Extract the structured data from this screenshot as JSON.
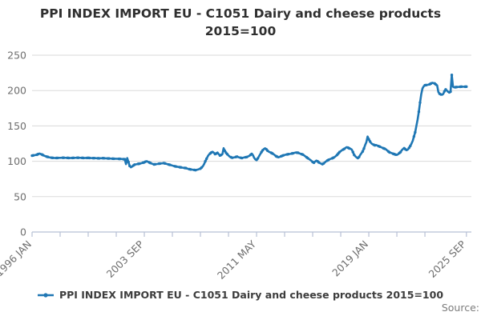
{
  "title": {
    "line1": "PPI INDEX IMPORT EU - C1051 Dairy and cheese products",
    "line2": "2015=100"
  },
  "legend": {
    "label": "PPI INDEX IMPORT EU - C1051 Dairy and cheese products 2015=100"
  },
  "source": {
    "label": "Source:"
  },
  "colors": {
    "line": "#1f77b4",
    "grid": "#dadada",
    "axis": "#b7c0d5",
    "tick_label": "#6e6e6e"
  },
  "chart_data": {
    "type": "line",
    "title": "PPI INDEX IMPORT EU - C1051 Dairy and cheese products 2015=100",
    "x_unit": "months since 1996 JAN",
    "x_range": [
      "1996 JAN",
      "2025 SEP"
    ],
    "x_total_months": 356,
    "xtick_labels": [
      {
        "month": 0,
        "label": "1996 JAN"
      },
      {
        "month": 92,
        "label": "2003 SEP"
      },
      {
        "month": 184,
        "label": "2011 MAY"
      },
      {
        "month": 276,
        "label": "2019 JAN"
      },
      {
        "month": 356,
        "label": "2025 SEP"
      }
    ],
    "minor_tick_months": [
      0,
      23,
      46,
      69,
      92,
      115,
      138,
      161,
      184,
      207,
      230,
      253,
      276,
      299,
      322,
      356
    ],
    "yticks": [
      0,
      50,
      100,
      150,
      200,
      250
    ],
    "ylim": [
      0,
      250
    ],
    "grid": "horizontal",
    "legend_position": "bottom",
    "series": [
      {
        "name": "PPI INDEX IMPORT EU - C1051 Dairy and cheese products 2015=100",
        "points": [
          [
            0,
            108
          ],
          [
            2,
            108.6
          ],
          [
            4,
            109.3
          ],
          [
            6,
            111
          ],
          [
            8,
            109.6
          ],
          [
            10,
            107.8
          ],
          [
            12,
            106.6
          ],
          [
            14,
            105.6
          ],
          [
            16,
            105
          ],
          [
            19,
            104.6
          ],
          [
            22,
            104.8
          ],
          [
            25,
            105
          ],
          [
            28,
            104.9
          ],
          [
            31,
            104.6
          ],
          [
            34,
            104.8
          ],
          [
            37,
            105
          ],
          [
            40,
            104.9
          ],
          [
            43,
            104.6
          ],
          [
            46,
            104.8
          ],
          [
            49,
            104.5
          ],
          [
            52,
            104.4
          ],
          [
            55,
            104.2
          ],
          [
            58,
            104.4
          ],
          [
            61,
            104.1
          ],
          [
            64,
            103.9
          ],
          [
            67,
            103.6
          ],
          [
            70,
            103.5
          ],
          [
            73,
            103.3
          ],
          [
            75,
            103
          ],
          [
            76,
            102.8
          ],
          [
            77,
            96
          ],
          [
            78,
            104.5
          ],
          [
            79,
            99
          ],
          [
            80,
            93.5
          ],
          [
            81,
            91.5
          ],
          [
            82,
            92.5
          ],
          [
            83,
            94
          ],
          [
            84,
            95.2
          ],
          [
            86,
            96
          ],
          [
            88,
            96.6
          ],
          [
            90,
            97.5
          ],
          [
            92,
            98.5
          ],
          [
            93,
            99.5
          ],
          [
            94,
            100.2
          ],
          [
            95,
            99.3
          ],
          [
            96,
            98.4
          ],
          [
            98,
            96.8
          ],
          [
            100,
            95.6
          ],
          [
            102,
            96
          ],
          [
            104,
            96.6
          ],
          [
            106,
            97
          ],
          [
            108,
            97.4
          ],
          [
            110,
            96.4
          ],
          [
            112,
            95.4
          ],
          [
            114,
            94.5
          ],
          [
            116,
            93.4
          ],
          [
            118,
            92.6
          ],
          [
            120,
            92
          ],
          [
            122,
            91.4
          ],
          [
            124,
            90.8
          ],
          [
            126,
            90.4
          ],
          [
            128,
            89.2
          ],
          [
            130,
            88.5
          ],
          [
            132,
            88
          ],
          [
            134,
            87.5
          ],
          [
            136,
            88.4
          ],
          [
            138,
            89.6
          ],
          [
            140,
            93
          ],
          [
            141,
            96
          ],
          [
            142,
            100
          ],
          [
            143,
            103.5
          ],
          [
            144,
            107
          ],
          [
            145,
            109.5
          ],
          [
            146,
            111
          ],
          [
            147,
            112.5
          ],
          [
            148,
            113.5
          ],
          [
            149,
            112
          ],
          [
            150,
            110.2
          ],
          [
            151,
            111
          ],
          [
            152,
            112.4
          ],
          [
            153,
            110
          ],
          [
            154,
            108.2
          ],
          [
            155,
            109
          ],
          [
            156,
            110
          ],
          [
            157,
            118.5
          ],
          [
            158,
            114.8
          ],
          [
            159,
            112
          ],
          [
            160,
            110
          ],
          [
            161,
            108.2
          ],
          [
            162,
            106.6
          ],
          [
            164,
            105
          ],
          [
            166,
            105.6
          ],
          [
            168,
            106.5
          ],
          [
            170,
            105.4
          ],
          [
            172,
            104.6
          ],
          [
            174,
            105.5
          ],
          [
            176,
            106
          ],
          [
            178,
            107.6
          ],
          [
            179,
            109
          ],
          [
            180,
            110.4
          ],
          [
            181,
            108.8
          ],
          [
            182,
            105
          ],
          [
            183,
            102.6
          ],
          [
            184,
            102
          ],
          [
            185,
            104
          ],
          [
            186,
            107
          ],
          [
            187,
            110
          ],
          [
            188,
            113
          ],
          [
            189,
            115.5
          ],
          [
            190,
            117.4
          ],
          [
            191,
            118.4
          ],
          [
            192,
            117
          ],
          [
            193,
            115
          ],
          [
            194,
            113.6
          ],
          [
            196,
            112
          ],
          [
            198,
            110
          ],
          [
            200,
            107.2
          ],
          [
            202,
            105.6
          ],
          [
            204,
            107
          ],
          [
            206,
            108.4
          ],
          [
            208,
            109.4
          ],
          [
            210,
            110
          ],
          [
            212,
            110.6
          ],
          [
            214,
            111.4
          ],
          [
            216,
            112.4
          ],
          [
            218,
            112
          ],
          [
            220,
            110.6
          ],
          [
            222,
            109.4
          ],
          [
            224,
            107
          ],
          [
            226,
            104.4
          ],
          [
            228,
            102
          ],
          [
            230,
            99
          ],
          [
            231,
            98
          ],
          [
            232,
            99.6
          ],
          [
            233,
            101
          ],
          [
            234,
            100
          ],
          [
            235,
            98.4
          ],
          [
            236,
            97.4
          ],
          [
            237,
            96.6
          ],
          [
            238,
            96
          ],
          [
            239,
            97
          ],
          [
            240,
            98.4
          ],
          [
            241,
            100
          ],
          [
            242,
            101
          ],
          [
            243,
            102
          ],
          [
            244,
            103
          ],
          [
            246,
            104.2
          ],
          [
            248,
            106
          ],
          [
            250,
            109
          ],
          [
            252,
            113
          ],
          [
            254,
            115.6
          ],
          [
            256,
            117.6
          ],
          [
            257,
            119
          ],
          [
            258,
            120
          ],
          [
            259,
            119.2
          ],
          [
            260,
            118.2
          ],
          [
            261,
            117.6
          ],
          [
            262,
            116.6
          ],
          [
            263,
            113
          ],
          [
            264,
            109
          ],
          [
            265,
            107
          ],
          [
            266,
            105.4
          ],
          [
            267,
            104.6
          ],
          [
            268,
            106
          ],
          [
            269,
            109
          ],
          [
            270,
            111.5
          ],
          [
            271,
            114
          ],
          [
            272,
            118
          ],
          [
            273,
            123
          ],
          [
            274,
            127
          ],
          [
            275,
            135
          ],
          [
            276,
            131
          ],
          [
            277,
            128
          ],
          [
            278,
            125.6
          ],
          [
            279,
            124.2
          ],
          [
            280,
            123.4
          ],
          [
            281,
            122.6
          ],
          [
            282,
            123
          ],
          [
            284,
            121.4
          ],
          [
            286,
            120
          ],
          [
            288,
            118.4
          ],
          [
            290,
            117
          ],
          [
            291,
            115.4
          ],
          [
            292,
            114
          ],
          [
            293,
            112.6
          ],
          [
            294,
            112
          ],
          [
            295,
            111.4
          ],
          [
            296,
            110.6
          ],
          [
            297,
            110
          ],
          [
            298,
            109.4
          ],
          [
            299,
            109
          ],
          [
            300,
            110
          ],
          [
            301,
            111.6
          ],
          [
            302,
            113
          ],
          [
            303,
            115.6
          ],
          [
            304,
            117.4
          ],
          [
            305,
            118.4
          ],
          [
            306,
            117
          ],
          [
            307,
            115.6
          ],
          [
            308,
            116.6
          ],
          [
            309,
            119
          ],
          [
            310,
            121.6
          ],
          [
            311,
            125
          ],
          [
            312,
            129
          ],
          [
            313,
            135
          ],
          [
            314,
            141
          ],
          [
            315,
            150
          ],
          [
            316,
            159
          ],
          [
            317,
            170
          ],
          [
            318,
            183
          ],
          [
            319,
            195
          ],
          [
            320,
            203
          ],
          [
            321,
            206
          ],
          [
            322,
            207.5
          ],
          [
            324,
            208
          ],
          [
            326,
            209
          ],
          [
            328,
            211
          ],
          [
            330,
            210
          ],
          [
            331,
            208.5
          ],
          [
            332,
            207.5
          ],
          [
            333,
            198
          ],
          [
            334,
            195.5
          ],
          [
            335,
            194.5
          ],
          [
            336,
            194
          ],
          [
            337,
            195.2
          ],
          [
            338,
            199
          ],
          [
            339,
            201.5
          ],
          [
            340,
            200
          ],
          [
            341,
            198.2
          ],
          [
            342,
            197.5
          ],
          [
            343,
            198.5
          ],
          [
            344,
            222
          ],
          [
            345,
            205.5
          ],
          [
            346,
            204.5
          ],
          [
            348,
            205
          ],
          [
            350,
            205.2
          ],
          [
            352,
            205.5
          ],
          [
            354,
            205.4
          ],
          [
            356,
            205.5
          ]
        ]
      }
    ]
  }
}
